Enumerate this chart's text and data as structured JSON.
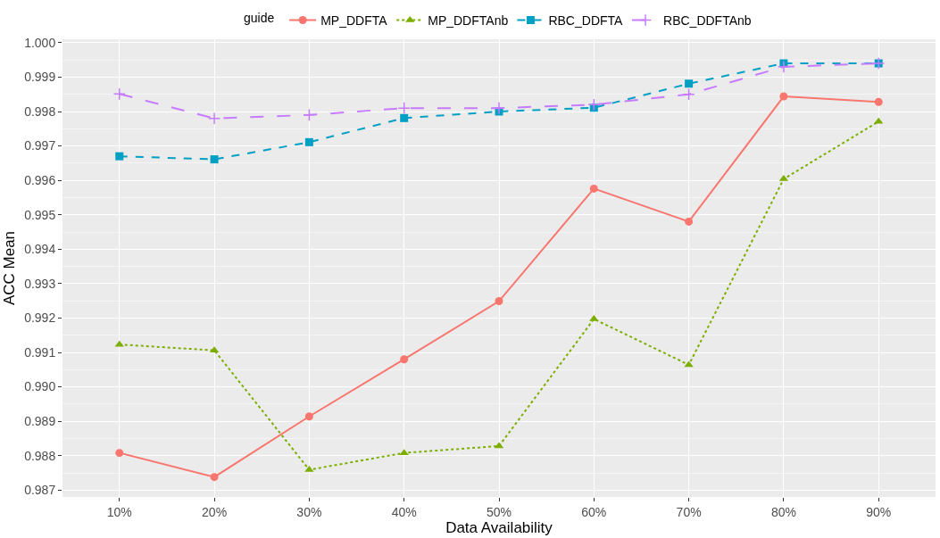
{
  "chart_data": {
    "type": "line",
    "xlabel": "Data Availability",
    "ylabel": "ACC Mean",
    "legend_title": "guide",
    "legend": "top",
    "grid": true,
    "categories": [
      "10%",
      "20%",
      "30%",
      "40%",
      "50%",
      "60%",
      "70%",
      "80%",
      "90%"
    ],
    "ylim": [
      0.9868,
      1.0001
    ],
    "yticks": [
      {
        "value": 0.987,
        "label": "0.987"
      },
      {
        "value": 0.988,
        "label": "0.988"
      },
      {
        "value": 0.989,
        "label": "0.989"
      },
      {
        "value": 0.99,
        "label": "0.990"
      },
      {
        "value": 0.991,
        "label": "0.991"
      },
      {
        "value": 0.992,
        "label": "0.992"
      },
      {
        "value": 0.993,
        "label": "0.993"
      },
      {
        "value": 0.994,
        "label": "0.994"
      },
      {
        "value": 0.995,
        "label": "0.995"
      },
      {
        "value": 0.996,
        "label": "0.996"
      },
      {
        "value": 0.997,
        "label": "0.997"
      },
      {
        "value": 0.998,
        "label": "0.998"
      },
      {
        "value": 0.999,
        "label": "0.999"
      },
      {
        "value": 1.0,
        "label": "1.000"
      }
    ],
    "series": [
      {
        "name": "MP_DDFTA",
        "color": "#f8766d",
        "marker": "circle",
        "line_style": "solid",
        "values": [
          0.98808,
          0.98738,
          0.98914,
          0.9908,
          0.99249,
          0.99576,
          0.9948,
          0.99844,
          0.99828
        ]
      },
      {
        "name": "MP_DDFTAnb",
        "color": "#7cae00",
        "marker": "triangle",
        "line_style": "dotted",
        "values": [
          0.99123,
          0.99106,
          0.98759,
          0.98808,
          0.98828,
          0.99197,
          0.99064,
          0.99604,
          0.99771
        ]
      },
      {
        "name": "RBC_DDFTA",
        "color": "#00a0c4",
        "marker": "square",
        "line_style": "dashed",
        "values": [
          0.9967,
          0.99661,
          0.99711,
          0.99781,
          0.998,
          0.99811,
          0.99881,
          0.9994,
          0.9994
        ]
      },
      {
        "name": "RBC_DDFTAnb",
        "color": "#c77cff",
        "marker": "cross",
        "line_style": "longdash",
        "values": [
          0.99851,
          0.9978,
          0.9979,
          0.9981,
          0.9981,
          0.9982,
          0.9985,
          0.9993,
          0.9994
        ]
      }
    ]
  }
}
